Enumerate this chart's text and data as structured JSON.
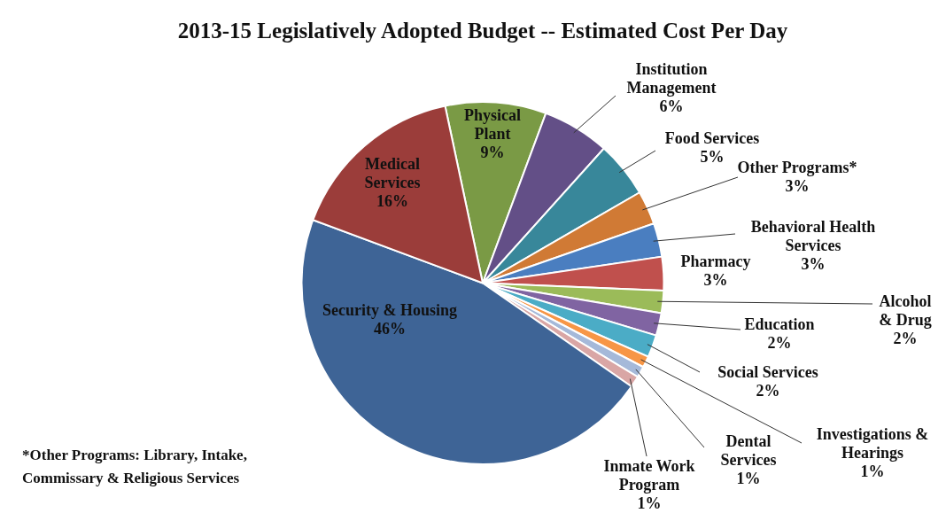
{
  "chart_data": {
    "type": "pie",
    "title": "2013-15 Legislatively Adopted Budget -- Estimated Cost Per Day",
    "categories": [
      "Physical Plant",
      "Institution Management",
      "Food Services",
      "Other Programs*",
      "Behavioral Health Services",
      "Pharmacy",
      "Alcohol & Drug",
      "Education",
      "Social Services",
      "Investigations & Hearings",
      "Dental Services",
      "Inmate Work Program",
      "Security & Housing",
      "Medical Services"
    ],
    "values": [
      9,
      6,
      5,
      3,
      3,
      3,
      2,
      2,
      2,
      1,
      1,
      1,
      46,
      16
    ],
    "value_labels": [
      "9%",
      "6%",
      "5%",
      "3%",
      "3%",
      "3%",
      "2%",
      "2%",
      "2%",
      "1%",
      "1%",
      "1%",
      "46%",
      "16%"
    ],
    "colors": [
      "#7a9a45",
      "#634f87",
      "#38879a",
      "#d07a35",
      "#4a7ec0",
      "#c0504d",
      "#9bbb59",
      "#8064a2",
      "#4bacc6",
      "#f79646",
      "#a5b9d9",
      "#d9a6a5",
      "#3e6496",
      "#9b3d3a"
    ],
    "annotations": [
      "*Other Programs: Library, Intake, Commissary & Religious Services"
    ],
    "legend": false
  }
}
